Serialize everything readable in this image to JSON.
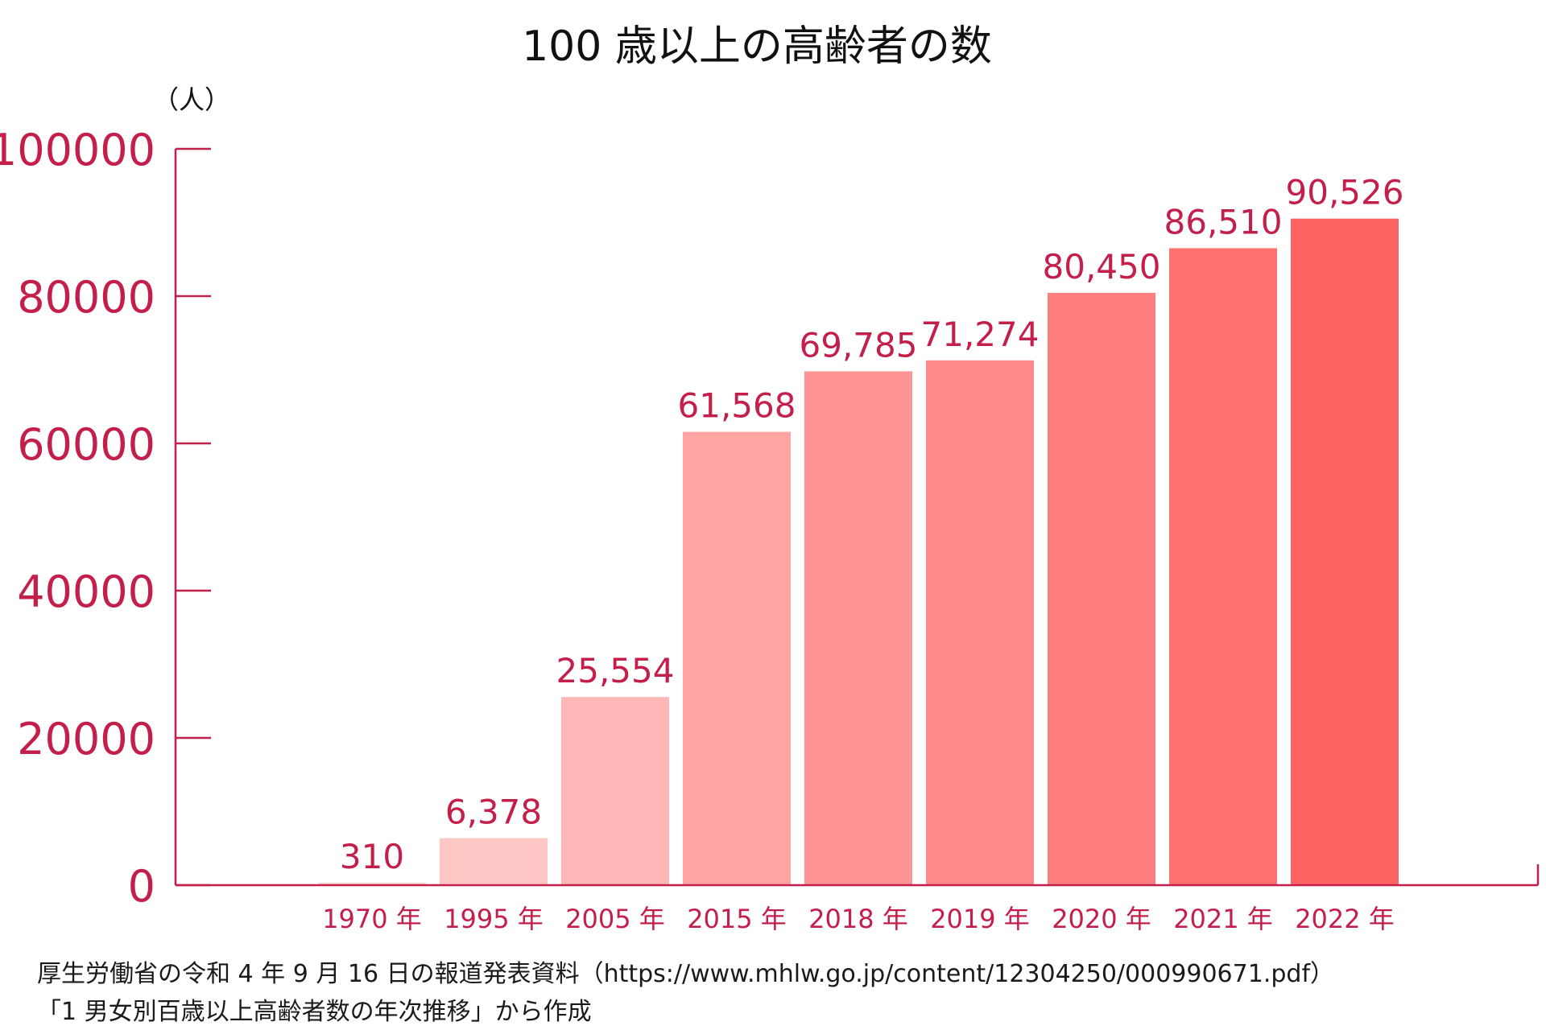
{
  "chart_data": {
    "type": "bar",
    "title": "100 歳以上の高齢者の数",
    "ylabel": "（人）",
    "xlabel": "",
    "categories": [
      "1970 年",
      "1995 年",
      "2005 年",
      "2015 年",
      "2018 年",
      "2019 年",
      "2020 年",
      "2021 年",
      "2022 年"
    ],
    "values": [
      310,
      6378,
      25554,
      61568,
      69785,
      71274,
      80450,
      86510,
      90526
    ],
    "value_labels": [
      "310",
      "6,378",
      "25,554",
      "61,568",
      "69,785",
      "71,274",
      "80,450",
      "86,510",
      "90,526"
    ],
    "ylim": [
      0,
      100000
    ],
    "y_ticks": [
      0,
      20000,
      40000,
      60000,
      80000,
      100000
    ],
    "y_tick_labels": [
      "0",
      "20000",
      "40000",
      "60000",
      "80000",
      "100000"
    ],
    "grid": false,
    "legend": "none",
    "bar_colors": [
      "#ffd7d7",
      "#ffc6c6",
      "#ffb6b6",
      "#ffa3a3",
      "#ff9494",
      "#ff8a8a",
      "#ff7d7d",
      "#ff7070",
      "#ff6464"
    ]
  },
  "colors": {
    "accent": "#c41e4a",
    "title": "#111111",
    "source_text": "#1a1a1a",
    "background": "#ffffff"
  },
  "source": {
    "line1": "厚生労働省の令和 4 年 9 月 16 日の報道発表資料（https://www.mhlw.go.jp/content/12304250/000990671.pdf）",
    "line2": "「1  男女別百歳以上高齢者数の年次推移」から作成"
  }
}
